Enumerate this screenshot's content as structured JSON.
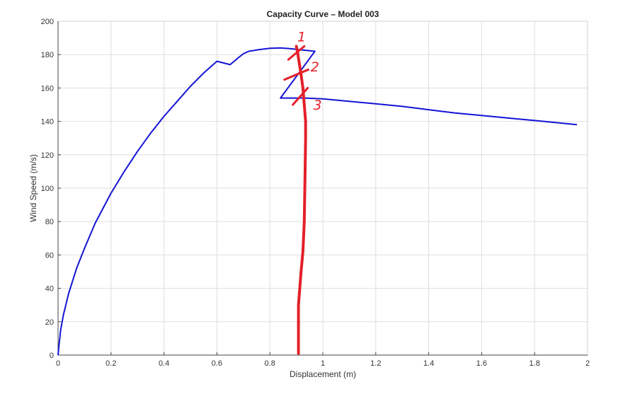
{
  "chart_data": {
    "type": "line",
    "title": "Capacity Curve – Model 003",
    "xlabel": "Displacement (m)",
    "ylabel": "Wind Speed (m/s)",
    "xlim": [
      0,
      2
    ],
    "ylim": [
      0,
      200
    ],
    "x_ticks": [
      "0",
      "0.2",
      "0.4",
      "0.6",
      "0.8",
      "1",
      "1.2",
      "1.4",
      "1.6",
      "1.8",
      "2"
    ],
    "y_ticks": [
      "0",
      "20",
      "40",
      "60",
      "80",
      "100",
      "120",
      "140",
      "160",
      "180",
      "200"
    ],
    "grid": true,
    "series": [
      {
        "color": "#1414d4",
        "x": [
          0,
          0.003,
          0.01,
          0.02,
          0.04,
          0.07,
          0.1,
          0.14,
          0.2,
          0.25,
          0.3,
          0.35,
          0.4,
          0.45,
          0.5,
          0.55,
          0.6,
          0.65,
          0.68,
          0.7,
          0.72,
          0.76,
          0.8,
          0.84,
          0.88,
          0.91,
          0.97,
          0.84,
          0.9,
          0.93,
          1.0,
          1.1,
          1.2,
          1.3,
          1.4,
          1.5,
          1.6,
          1.7,
          1.8,
          1.9,
          1.96
        ],
        "y": [
          0,
          5,
          15,
          24,
          37,
          52,
          64,
          79,
          97,
          110,
          122,
          133,
          143,
          152,
          161,
          169,
          176,
          174,
          178,
          180.5,
          182,
          183,
          183.8,
          184,
          183.5,
          183,
          182,
          154,
          154,
          154,
          153.5,
          152,
          150.5,
          149,
          147,
          145,
          143.5,
          142,
          140.5,
          139,
          138
        ]
      }
    ],
    "annotations": {
      "color": "#e3202a",
      "labels": [
        {
          "text": "1",
          "x": 0.92,
          "y": 188
        },
        {
          "text": "2",
          "x": 0.97,
          "y": 170
        },
        {
          "text": "3",
          "x": 0.98,
          "y": 147
        }
      ],
      "vertical_line": {
        "x": [
          0.908,
          0.908,
          0.912,
          0.918,
          0.925,
          0.93,
          0.932,
          0.935,
          0.935,
          0.93,
          0.925,
          0.918,
          0.91,
          0.905,
          0.9
        ],
        "y": [
          1,
          30,
          38,
          50,
          62,
          80,
          100,
          130,
          140,
          150,
          160,
          168,
          176,
          181,
          185
        ]
      },
      "crosses": [
        {
          "x": 0.9,
          "y": 181,
          "dx": 0.03,
          "dy": 4
        },
        {
          "x": 0.9,
          "y": 168,
          "dx": 0.045,
          "dy": 3
        },
        {
          "x": 0.915,
          "y": 155,
          "dx": 0.028,
          "dy": 5
        }
      ]
    }
  }
}
